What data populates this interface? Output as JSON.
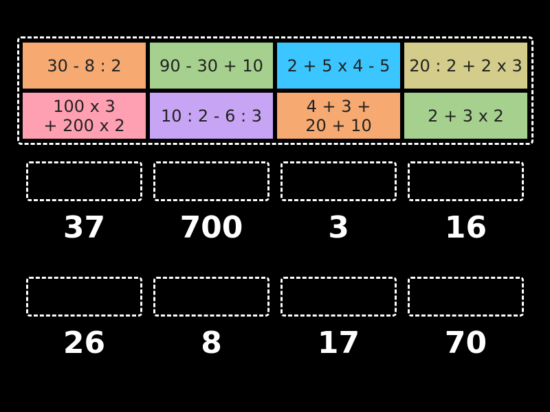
{
  "tiles": [
    {
      "label": "30 - 8 : 2"
    },
    {
      "label": "90 - 30 + 10"
    },
    {
      "label": "2 + 5 x 4 - 5"
    },
    {
      "label": "20 : 2 + 2 x 3"
    },
    {
      "label": "100 x 3\n+ 200 x 2"
    },
    {
      "label": "10 : 2 - 6 : 3"
    },
    {
      "label": "4 + 3 +\n20 + 10"
    },
    {
      "label": "2 + 3 x 2"
    }
  ],
  "targets": [
    {
      "answer": 37
    },
    {
      "answer": 700
    },
    {
      "answer": 3
    },
    {
      "answer": 16
    },
    {
      "answer": 26
    },
    {
      "answer": 8
    },
    {
      "answer": 17
    },
    {
      "answer": 70
    }
  ]
}
